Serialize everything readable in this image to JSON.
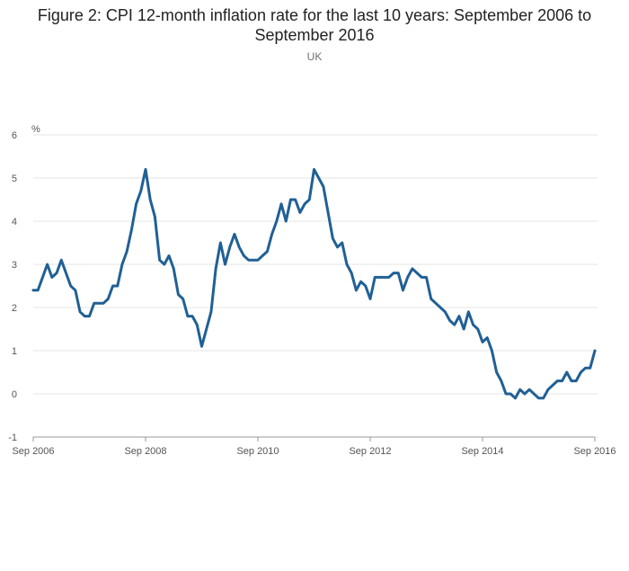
{
  "chart_data": {
    "type": "line",
    "title": "Figure 2: CPI 12-month inflation rate for the last 10 years: September 2006 to September 2016",
    "subtitle": "UK",
    "ylabel": "%",
    "xlabel": "",
    "ylim": [
      -1,
      6
    ],
    "yticks": [
      "-1",
      "0",
      "1",
      "2",
      "3",
      "4",
      "5",
      "6"
    ],
    "grid": true,
    "line_color": "#206095",
    "x_ticks": [
      {
        "label": "Sep 2006",
        "date": "2006-09"
      },
      {
        "label": "Sep 2008",
        "date": "2008-09"
      },
      {
        "label": "Sep 2010",
        "date": "2010-09"
      },
      {
        "label": "Sep 2012",
        "date": "2012-09"
      },
      {
        "label": "Sep 2014",
        "date": "2014-09"
      },
      {
        "label": "Sep 2016",
        "date": "2016-09"
      }
    ],
    "series": [
      {
        "start": "2006-09",
        "frequency": "monthly",
        "values": [
          2.4,
          2.4,
          2.7,
          3.0,
          2.7,
          2.8,
          3.1,
          2.8,
          2.5,
          2.4,
          1.9,
          1.8,
          1.8,
          2.1,
          2.1,
          2.1,
          2.2,
          2.5,
          2.5,
          3.0,
          3.3,
          3.8,
          4.4,
          4.7,
          5.2,
          4.5,
          4.1,
          3.1,
          3.0,
          3.2,
          2.9,
          2.3,
          2.2,
          1.8,
          1.8,
          1.6,
          1.1,
          1.5,
          1.9,
          2.9,
          3.5,
          3.0,
          3.4,
          3.7,
          3.4,
          3.2,
          3.1,
          3.1,
          3.1,
          3.2,
          3.3,
          3.7,
          4.0,
          4.4,
          4.0,
          4.5,
          4.5,
          4.2,
          4.4,
          4.5,
          5.2,
          5.0,
          4.8,
          4.2,
          3.6,
          3.4,
          3.5,
          3.0,
          2.8,
          2.4,
          2.6,
          2.5,
          2.2,
          2.7,
          2.7,
          2.7,
          2.7,
          2.8,
          2.8,
          2.4,
          2.7,
          2.9,
          2.8,
          2.7,
          2.7,
          2.2,
          2.1,
          2.0,
          1.9,
          1.7,
          1.6,
          1.8,
          1.5,
          1.9,
          1.6,
          1.5,
          1.2,
          1.3,
          1.0,
          0.5,
          0.3,
          0.0,
          0.0,
          -0.1,
          0.1,
          0.0,
          0.1,
          0.0,
          -0.1,
          -0.1,
          0.1,
          0.2,
          0.3,
          0.3,
          0.5,
          0.3,
          0.3,
          0.5,
          0.6,
          0.6,
          1.0
        ]
      }
    ]
  }
}
